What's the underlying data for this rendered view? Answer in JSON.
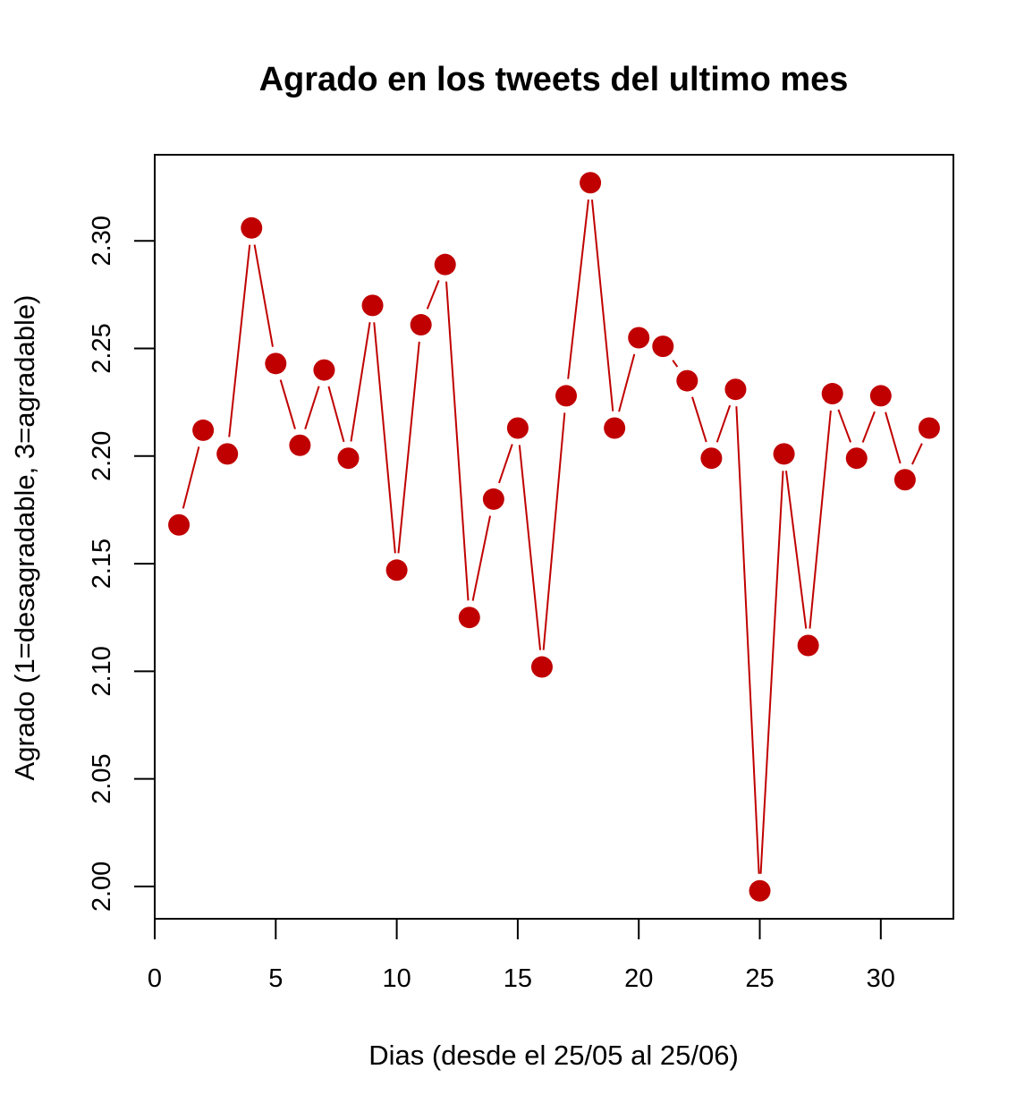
{
  "chart_data": {
    "type": "line",
    "title": "Agrado en los tweets del ultimo mes",
    "xlabel": "Dias (desde el 25/05 al 25/06)",
    "ylabel": "Agrado (1=desagradable, 3=agradable)",
    "xlim": [
      0,
      33
    ],
    "ylim": [
      1.985,
      2.34
    ],
    "x_ticks": [
      0,
      5,
      10,
      15,
      20,
      25,
      30
    ],
    "x_tick_labels": [
      "0",
      "5",
      "10",
      "15",
      "20",
      "25",
      "30"
    ],
    "y_ticks": [
      2.0,
      2.05,
      2.1,
      2.15,
      2.2,
      2.25,
      2.3
    ],
    "y_tick_labels": [
      "2.00",
      "2.05",
      "2.10",
      "2.15",
      "2.20",
      "2.25",
      "2.30"
    ],
    "grid": false,
    "legend": "none",
    "series": [
      {
        "color": "#c00000",
        "marker": "filled-circle",
        "x": [
          1,
          2,
          3,
          4,
          5,
          6,
          7,
          8,
          9,
          10,
          11,
          12,
          13,
          14,
          15,
          16,
          17,
          18,
          19,
          20,
          21,
          22,
          23,
          24,
          25,
          26,
          27,
          28,
          29,
          30,
          31,
          32
        ],
        "values": [
          2.168,
          2.212,
          2.201,
          2.306,
          2.243,
          2.205,
          2.24,
          2.199,
          2.27,
          2.147,
          2.261,
          2.289,
          2.125,
          2.18,
          2.213,
          2.102,
          2.228,
          2.327,
          2.213,
          2.255,
          2.251,
          2.235,
          2.199,
          2.231,
          1.998,
          2.201,
          2.112,
          2.229,
          2.199,
          2.228,
          2.189,
          2.213
        ]
      }
    ]
  }
}
